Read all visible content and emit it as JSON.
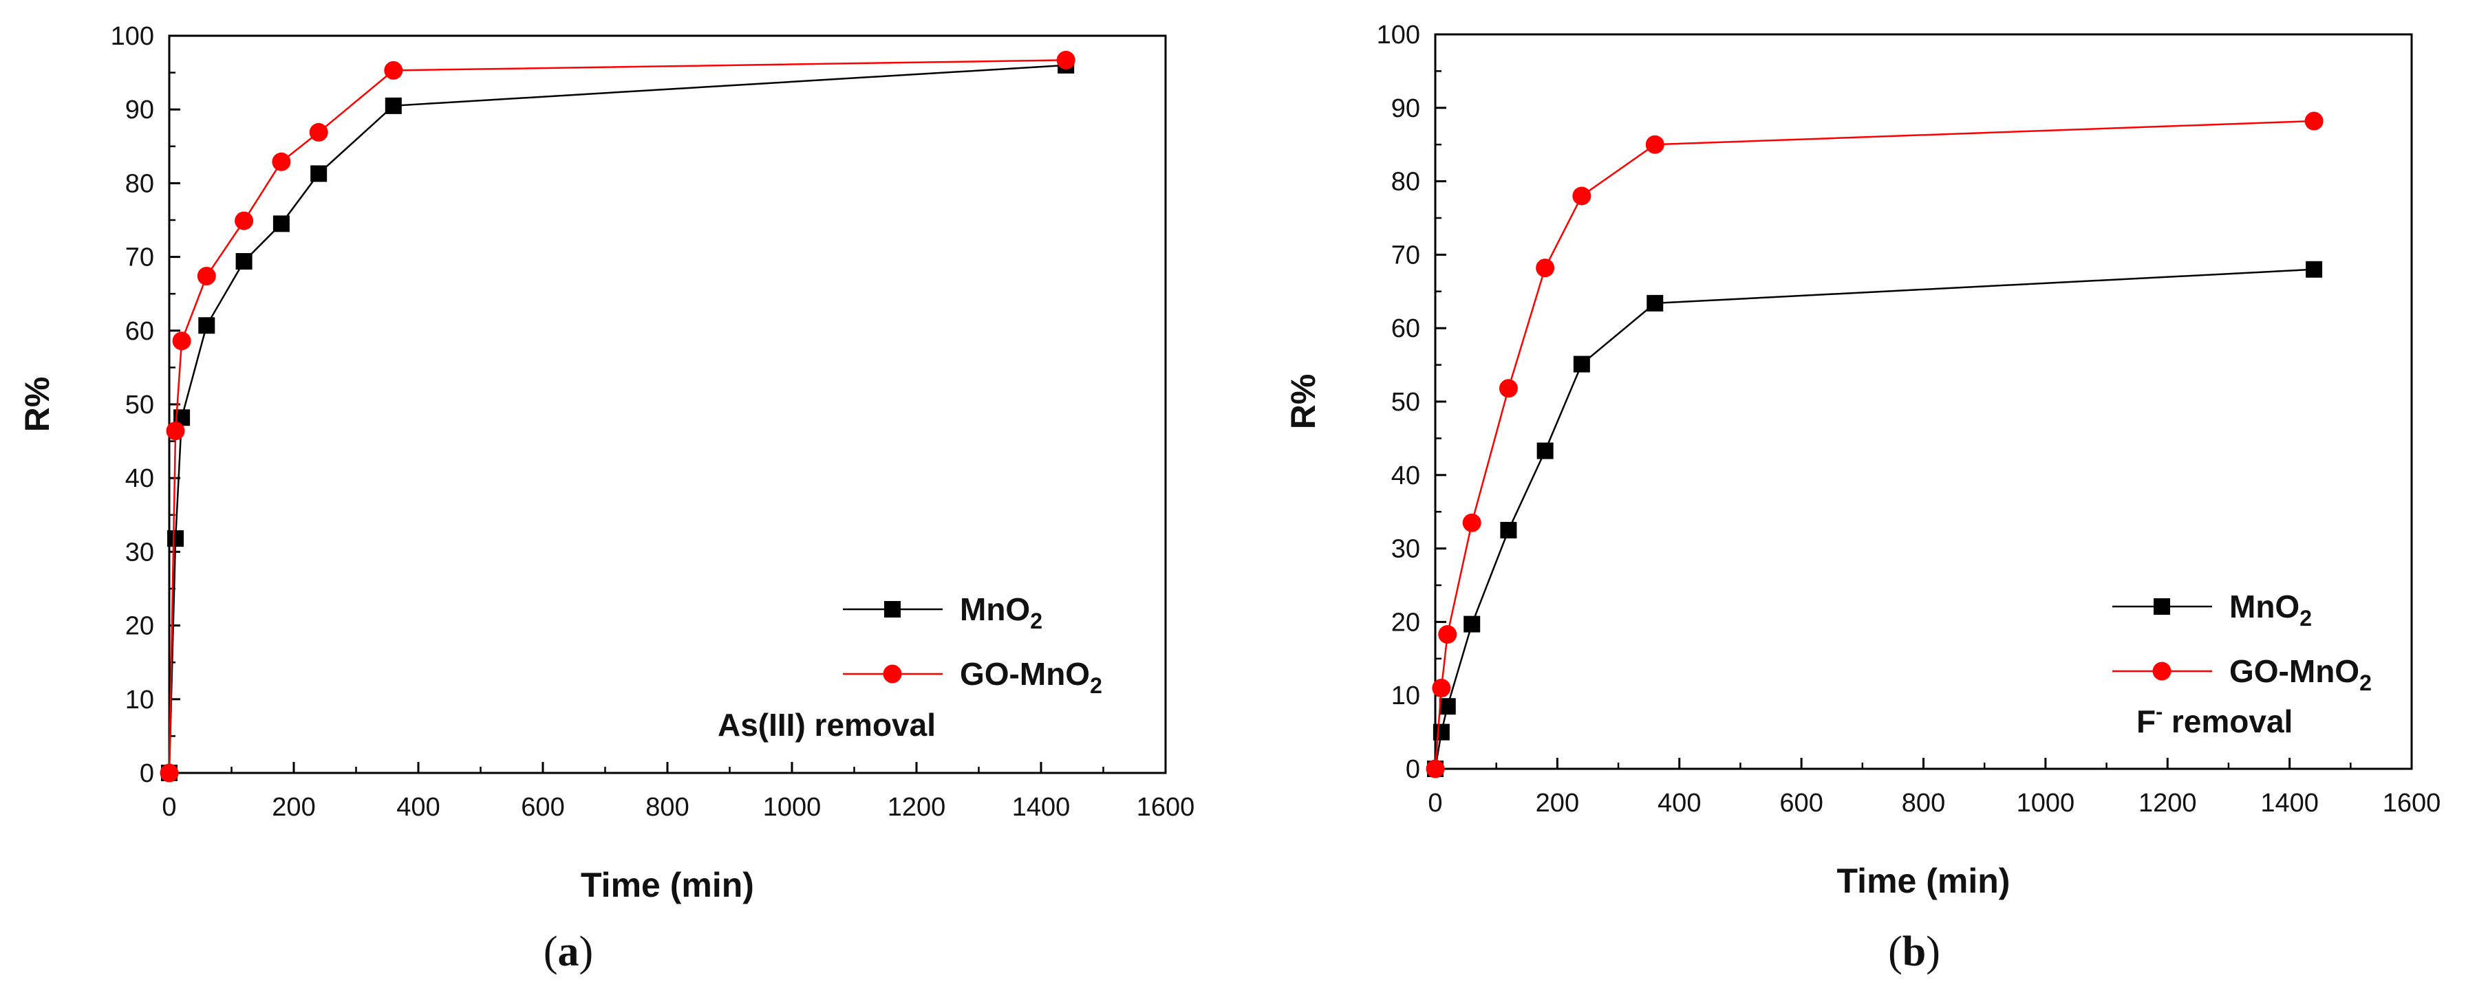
{
  "figure": {
    "captions": [
      "(a)",
      "(b)"
    ]
  },
  "chart_data": [
    {
      "type": "line",
      "panel": "(a)",
      "panel_letter": "a",
      "title": "",
      "xlabel": "Time (min)",
      "ylabel": "R%",
      "xlim": [
        0,
        1600
      ],
      "ylim": [
        0,
        100
      ],
      "xticks": [
        0,
        200,
        400,
        600,
        800,
        1000,
        1200,
        1400,
        1600
      ],
      "yticks": [
        0,
        10,
        20,
        30,
        40,
        50,
        60,
        70,
        80,
        90,
        100
      ],
      "annotation": "As(III) removal",
      "legend_position": "bottom-right",
      "series": [
        {
          "name": "MnO2",
          "label_main": "MnO",
          "label_sub": "2",
          "color": "#000000",
          "marker": "square",
          "x": [
            0,
            10,
            20,
            60,
            120,
            180,
            240,
            360,
            1440
          ],
          "y": [
            0,
            31.8,
            48.2,
            60.7,
            69.4,
            74.5,
            81.3,
            90.5,
            96.0
          ]
        },
        {
          "name": "GO-MnO2",
          "label_main": "GO-MnO",
          "label_sub": "2",
          "color": "#ff0000",
          "marker": "circle",
          "x": [
            0,
            10,
            20,
            60,
            120,
            180,
            240,
            360,
            1440
          ],
          "y": [
            0,
            46.4,
            58.6,
            67.4,
            74.9,
            82.9,
            86.9,
            95.3,
            96.7
          ]
        }
      ]
    },
    {
      "type": "line",
      "panel": "(b)",
      "panel_letter": "b",
      "title": "",
      "xlabel": "Time (min)",
      "ylabel": "R%",
      "xlim": [
        0,
        1600
      ],
      "ylim": [
        0,
        100
      ],
      "xticks": [
        0,
        200,
        400,
        600,
        800,
        1000,
        1200,
        1400,
        1600
      ],
      "yticks": [
        0,
        10,
        20,
        30,
        40,
        50,
        60,
        70,
        80,
        90,
        100
      ],
      "annotation": "removal",
      "annotation_ion": "F",
      "annotation_sup": "-",
      "legend_position": "bottom-right",
      "series": [
        {
          "name": "MnO2",
          "label_main": "MnO",
          "label_sub": "2",
          "color": "#000000",
          "marker": "square",
          "x": [
            0,
            10,
            20,
            60,
            120,
            180,
            240,
            360,
            1440
          ],
          "y": [
            0,
            5.0,
            8.5,
            19.7,
            32.5,
            43.3,
            55.1,
            63.4,
            68.0
          ]
        },
        {
          "name": "GO-MnO2",
          "label_main": "GO-MnO",
          "label_sub": "2",
          "color": "#ff0000",
          "marker": "circle",
          "x": [
            0,
            10,
            20,
            60,
            120,
            180,
            240,
            360,
            1440
          ],
          "y": [
            0,
            11.0,
            18.3,
            33.5,
            51.8,
            68.2,
            78.0,
            85.0,
            88.2
          ]
        }
      ]
    }
  ]
}
